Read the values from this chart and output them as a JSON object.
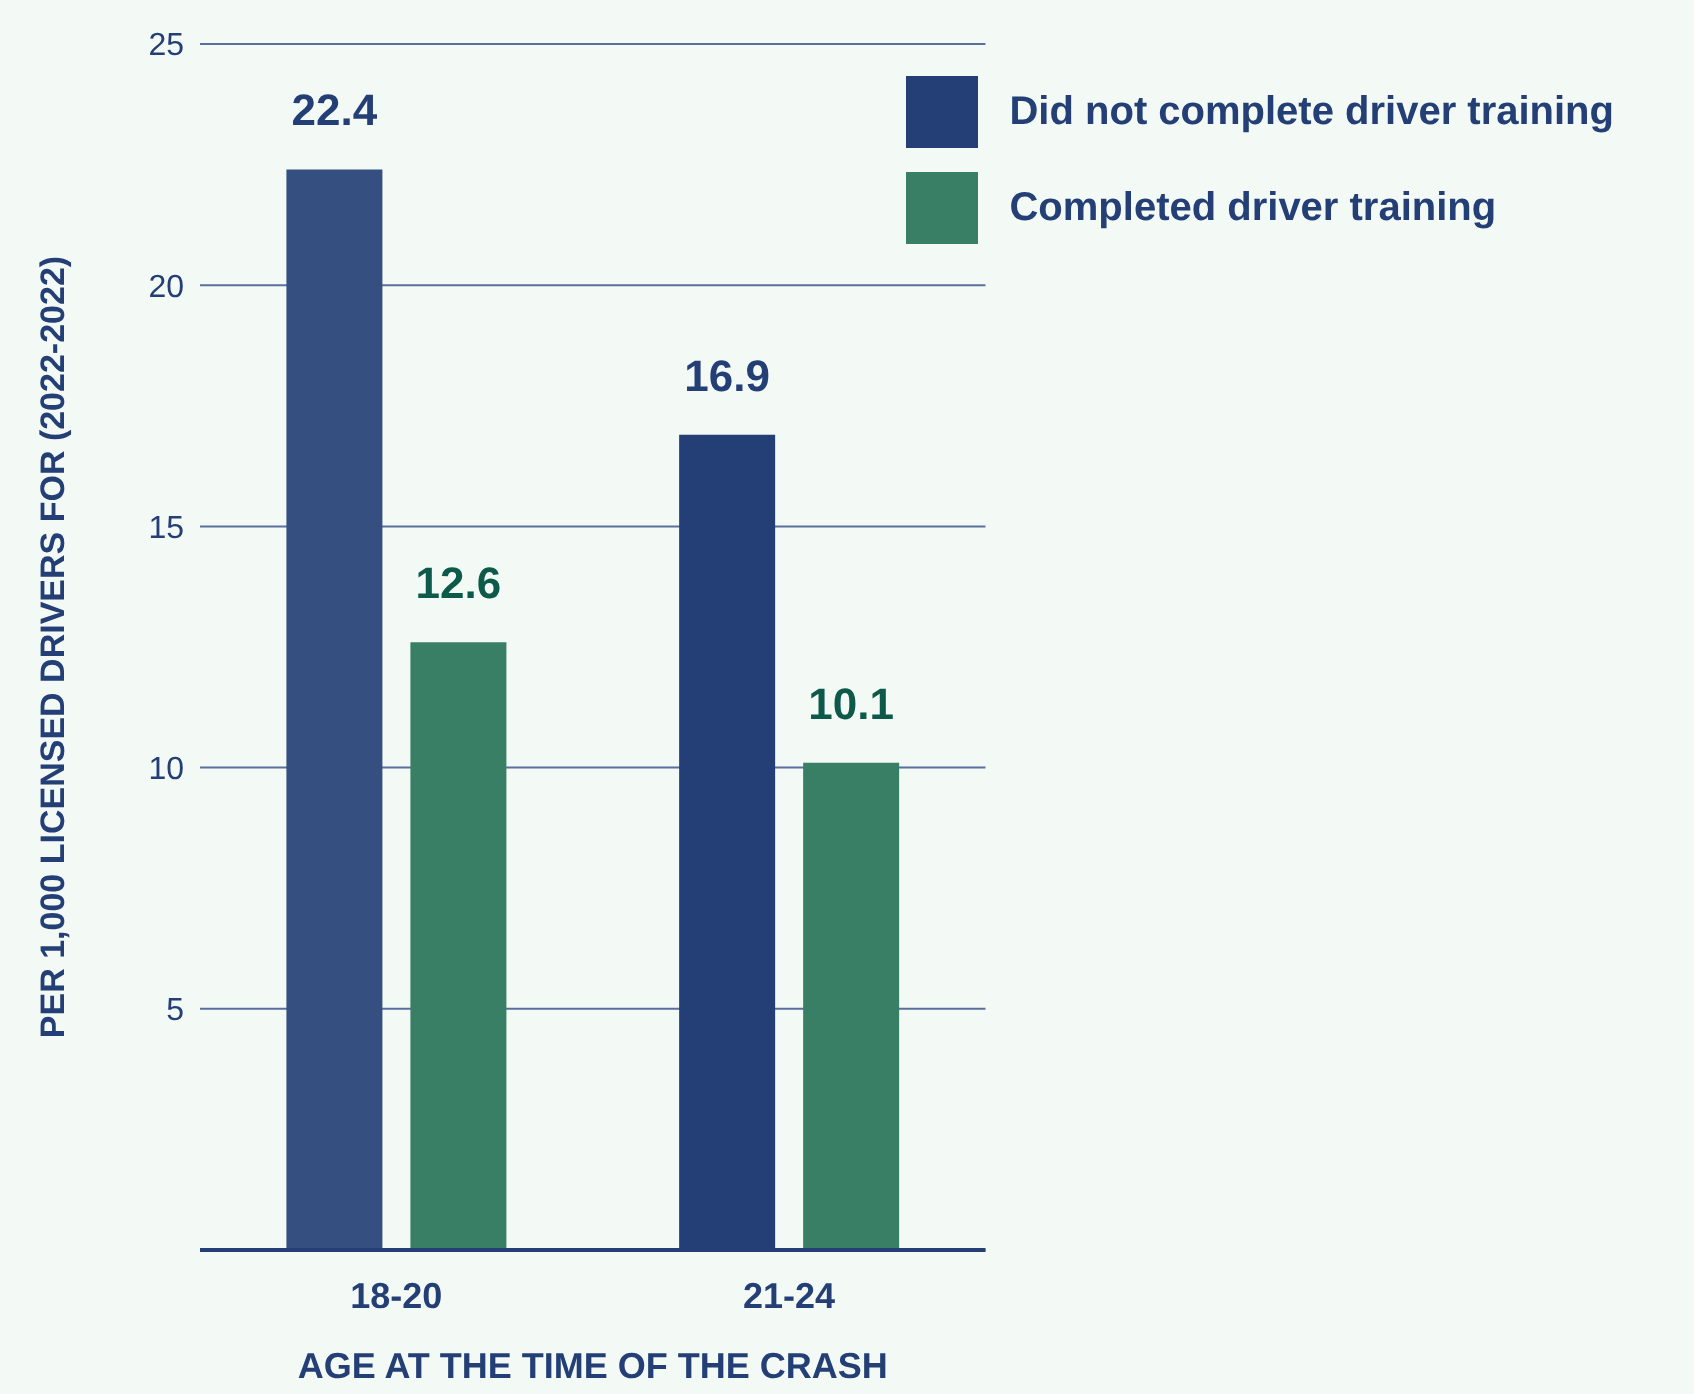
{
  "chart_data": {
    "type": "bar",
    "xlabel": "AGE AT THE TIME OF THE CRASH",
    "ylabel": "PER 1,000 LICENSED DRIVERS FOR (2022-2022)",
    "categories": [
      "18-20",
      "21-24"
    ],
    "series": [
      {
        "name": "Did not complete driver training",
        "color": "#233f75",
        "colors": [
          "#344f80",
          "#233f75"
        ],
        "values": [
          22.4,
          16.9
        ]
      },
      {
        "name": "Completed driver training",
        "color": "#387f66",
        "values": [
          12.6,
          10.1
        ]
      }
    ],
    "ylim": [
      0,
      25
    ],
    "yticks": [
      {
        "value": 0,
        "label": null
      },
      5,
      10,
      15,
      20,
      25
    ],
    "grid": "y",
    "legend": "top right",
    "data_labels": true
  }
}
